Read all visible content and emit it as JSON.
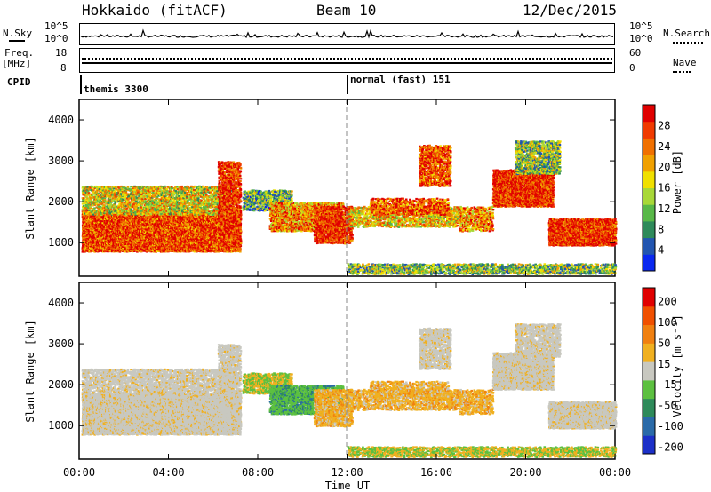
{
  "header": {
    "title": "Hokkaido (fitACF)",
    "beam": "Beam 10",
    "date": "12/Dec/2015"
  },
  "top_panel": {
    "left_label": "N.Sky",
    "right_label": "N.Search",
    "left_ticks": [
      "10^5",
      "10^0"
    ],
    "right_ticks": [
      "10^5",
      "10^0"
    ]
  },
  "freq_panel": {
    "left_label": "Freq.",
    "left_unit": "[MHz]",
    "right_label": "Nave",
    "left_ticks": [
      "18",
      "8"
    ],
    "right_ticks": [
      "60",
      "0"
    ]
  },
  "cpid": {
    "label": "CPID",
    "segments": [
      {
        "name": "themis 3300",
        "start_hour": 0
      },
      {
        "name": "normal (fast) 151",
        "start_hour": 12
      }
    ]
  },
  "chart_data": [
    {
      "type": "heatmap",
      "name": "Power",
      "ylabel": "Slant Range [km]",
      "xlabel": "Time UT",
      "ylim": [
        180,
        4500
      ],
      "xlim": [
        0,
        24
      ],
      "y_ticks": [
        "1000",
        "2000",
        "3000",
        "4000"
      ],
      "x_ticks": [
        "00:00",
        "04:00",
        "08:00",
        "12:00",
        "16:00",
        "20:00",
        "00:00"
      ],
      "colorbar": {
        "label": "Power [dB]",
        "ticks": [
          "4",
          "8",
          "12",
          "16",
          "20",
          "24",
          "28"
        ],
        "colors": [
          "#0a28f0",
          "#2255b0",
          "#2e8a5a",
          "#58b848",
          "#a8d838",
          "#f0e000",
          "#f0a000",
          "#f07000",
          "#f03a00",
          "#e00000"
        ]
      }
    },
    {
      "type": "heatmap",
      "name": "Velocity",
      "ylabel": "Slant Range [km]",
      "xlabel": "Time UT",
      "ylim": [
        180,
        4500
      ],
      "xlim": [
        0,
        24
      ],
      "y_ticks": [
        "1000",
        "2000",
        "3000",
        "4000"
      ],
      "x_ticks": [
        "00:00",
        "04:00",
        "08:00",
        "12:00",
        "16:00",
        "20:00",
        "00:00"
      ],
      "colorbar": {
        "label": "Velocity [m s⁻¹]",
        "ticks": [
          "200",
          "100",
          "50",
          "15",
          "-15",
          "-50",
          "-100",
          "-200"
        ],
        "colors": [
          "#1c30c8",
          "#2a6aa8",
          "#2e8a5a",
          "#5cc040",
          "#c8c8c0",
          "#f0b020",
          "#f08010",
          "#f05000",
          "#e00000"
        ]
      }
    }
  ]
}
